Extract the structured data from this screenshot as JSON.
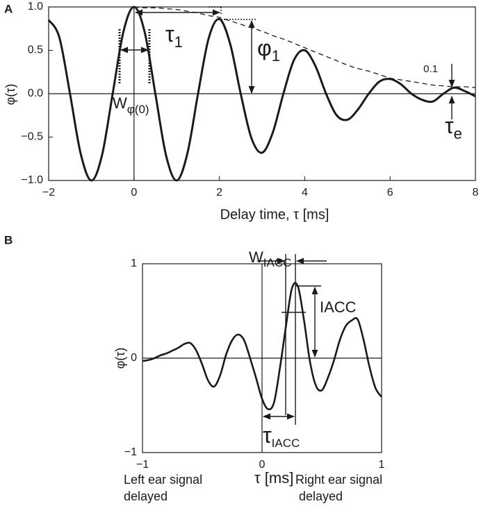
{
  "chart_data": [
    {
      "type": "line",
      "label": "A",
      "xlabel": "Delay time, τ [ms]",
      "ylabel": "φ(τ)",
      "xlim": [
        -2,
        8
      ],
      "ylim": [
        -1,
        1
      ],
      "xticks": [
        {
          "value": -2,
          "label": "−2"
        },
        0,
        2,
        4,
        6,
        8
      ],
      "yticks": [
        {
          "value": -1,
          "label": "−1.0"
        },
        {
          "value": -0.5,
          "label": "−0.5"
        },
        {
          "value": 0,
          "label": "0.0"
        },
        {
          "value": 0.5,
          "label": "0.5"
        },
        {
          "value": 1,
          "label": "1.0"
        }
      ],
      "zero_lines": true,
      "grid": false,
      "x": [
        -2,
        -1.75,
        -1.5,
        -1.25,
        -1,
        -0.75,
        -0.5,
        -0.25,
        0,
        0.25,
        0.5,
        0.75,
        1,
        1.25,
        1.5,
        1.75,
        2,
        2.25,
        2.5,
        2.75,
        3,
        3.25,
        3.5,
        3.75,
        4,
        4.25,
        4.5,
        4.75,
        5,
        5.25,
        5.5,
        5.75,
        6,
        6.25,
        6.5,
        6.75,
        7,
        7.25,
        7.5,
        7.75,
        8
      ],
      "series": [
        {
          "color": "#1a1a1a",
          "style": "solid",
          "values": [
            0.85,
            0.65,
            0,
            -0.69,
            -1,
            -0.71,
            0,
            0.71,
            1,
            0.71,
            0,
            -0.71,
            -1,
            -0.69,
            0,
            0.64,
            0.86,
            0.58,
            0,
            -0.51,
            -0.68,
            -0.45,
            0,
            0.39,
            0.5,
            0.32,
            0,
            -0.25,
            -0.3,
            -0.18,
            0,
            0.14,
            0.17,
            0.11,
            0,
            -0.07,
            -0.09,
            0,
            0.07,
            0.03,
            -0.03
          ]
        },
        {
          "color": "#1a1a1a",
          "style": "dashed",
          "values": [
            null,
            null,
            null,
            null,
            null,
            null,
            null,
            null,
            1,
            0.99,
            0.99,
            0.98,
            0.97,
            0.95,
            0.93,
            0.9,
            0.88,
            0.84,
            0.8,
            0.76,
            0.72,
            0.67,
            0.63,
            0.58,
            0.53,
            0.48,
            0.43,
            0.38,
            0.33,
            0.29,
            0.26,
            0.22,
            0.18,
            0.16,
            0.14,
            0.12,
            0.1,
            0.09,
            0.08,
            0.08,
            0.07
          ]
        }
      ],
      "annotations": [
        {
          "text": "τ",
          "sub": "1"
        },
        {
          "text": "φ",
          "sub": "1"
        },
        {
          "text": "W",
          "sub": "φ(0)"
        },
        {
          "text": "0.1"
        },
        {
          "text": "τ",
          "sub": "e"
        }
      ]
    },
    {
      "type": "line",
      "label": "B",
      "xlabel": "τ [ms]",
      "ylabel": "φ(τ)",
      "xlim": [
        -1,
        1
      ],
      "ylim": [
        -1,
        1
      ],
      "xticks": [
        {
          "value": -1,
          "label": "−1"
        },
        0,
        1
      ],
      "yticks": [
        {
          "value": -1,
          "label": "−1"
        },
        0,
        1
      ],
      "zero_lines": true,
      "grid": false,
      "x": [
        -1,
        -0.95,
        -0.9,
        -0.85,
        -0.8,
        -0.75,
        -0.7,
        -0.65,
        -0.6,
        -0.55,
        -0.5,
        -0.45,
        -0.4,
        -0.35,
        -0.3,
        -0.25,
        -0.2,
        -0.15,
        -0.1,
        -0.05,
        0,
        0.05,
        0.1,
        0.15,
        0.2,
        0.25,
        0.3,
        0.35,
        0.4,
        0.45,
        0.5,
        0.55,
        0.6,
        0.65,
        0.7,
        0.75,
        0.8,
        0.85,
        0.9,
        0.95,
        1
      ],
      "series": [
        {
          "color": "#1a1a1a",
          "style": "solid",
          "values": [
            -0.03,
            -0.02,
            0,
            0.03,
            0.05,
            0.08,
            0.11,
            0.15,
            0.16,
            0.08,
            -0.07,
            -0.24,
            -0.3,
            -0.18,
            0.04,
            0.19,
            0.25,
            0.19,
            0,
            -0.21,
            -0.43,
            -0.54,
            -0.47,
            -0.1,
            0.34,
            0.74,
            0.76,
            0.41,
            -0.03,
            -0.29,
            -0.34,
            -0.21,
            -0.03,
            0.19,
            0.34,
            0.4,
            0.41,
            0.19,
            -0.1,
            -0.32,
            -0.41
          ]
        }
      ],
      "annotations": [
        {
          "text": "W",
          "sub": "IACC"
        },
        {
          "text": "IACC"
        },
        {
          "text": "τ",
          "sub": "IACC"
        }
      ],
      "x_notes": [
        "Left ear signal",
        "delayed",
        "Right ear signal",
        "delayed"
      ]
    }
  ]
}
